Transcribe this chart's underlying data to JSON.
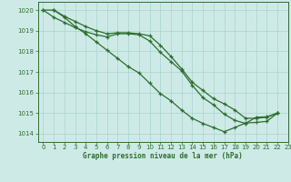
{
  "title": "Graphe pression niveau de la mer (hPa)",
  "bg_color": "#ceeae7",
  "grid_color": "#a8d4cf",
  "line_color": "#2d6e2d",
  "xlim": [
    -0.5,
    23
  ],
  "ylim": [
    1013.6,
    1020.4
  ],
  "yticks": [
    1014,
    1015,
    1016,
    1017,
    1018,
    1019,
    1020
  ],
  "xticks": [
    0,
    1,
    2,
    3,
    4,
    5,
    6,
    7,
    8,
    9,
    10,
    11,
    12,
    13,
    14,
    15,
    16,
    17,
    18,
    19,
    20,
    21,
    22,
    23
  ],
  "line1_x": [
    0,
    1,
    2,
    3,
    4,
    5,
    6,
    7,
    8,
    9,
    10,
    11,
    12,
    13,
    14,
    15,
    16,
    17,
    18,
    19,
    20,
    21,
    22
  ],
  "line1_y": [
    1020.0,
    1020.0,
    1019.7,
    1019.45,
    1019.2,
    1019.0,
    1018.85,
    1018.9,
    1018.9,
    1018.85,
    1018.75,
    1018.3,
    1017.75,
    1017.15,
    1016.5,
    1016.1,
    1015.7,
    1015.45,
    1015.15,
    1014.75,
    1014.75,
    1014.8,
    1015.0
  ],
  "line2_x": [
    0,
    1,
    2,
    3,
    4,
    5,
    6,
    7,
    8,
    9,
    10,
    11,
    12,
    13,
    14,
    15,
    16,
    17,
    18,
    19,
    20,
    21,
    22
  ],
  "line2_y": [
    1020.0,
    1019.65,
    1019.4,
    1019.15,
    1018.95,
    1018.8,
    1018.7,
    1018.85,
    1018.85,
    1018.8,
    1018.5,
    1017.95,
    1017.5,
    1017.05,
    1016.35,
    1015.75,
    1015.4,
    1014.95,
    1014.65,
    1014.5,
    1014.8,
    1014.82,
    1015.0
  ],
  "line3_x": [
    1,
    2,
    3,
    4,
    5,
    6,
    7,
    8,
    9,
    10,
    11,
    12,
    13,
    14,
    15,
    16,
    17,
    18,
    19,
    20,
    21,
    22
  ],
  "line3_y": [
    1020.0,
    1019.65,
    1019.2,
    1018.85,
    1018.45,
    1018.05,
    1017.65,
    1017.25,
    1016.95,
    1016.45,
    1015.95,
    1015.6,
    1015.15,
    1014.75,
    1014.5,
    1014.3,
    1014.1,
    1014.3,
    1014.52,
    1014.55,
    1014.6,
    1015.0
  ]
}
